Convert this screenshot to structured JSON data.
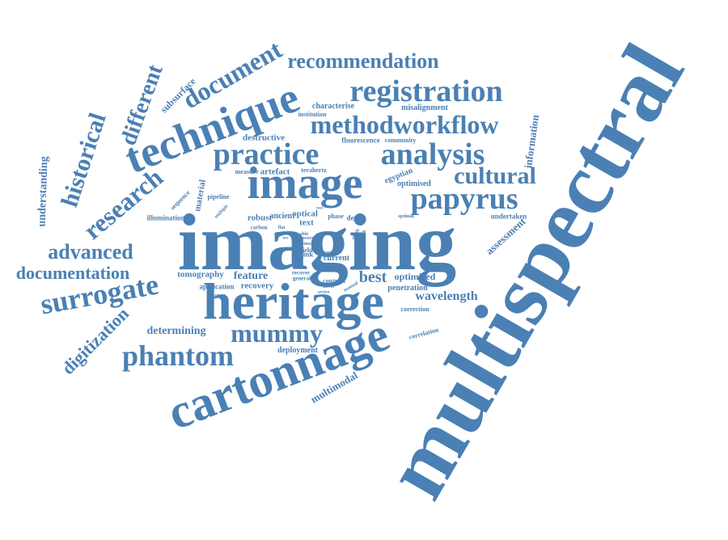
{
  "colors": {
    "text": "#4a80b4",
    "background": "#ffffff"
  },
  "words": [
    "multispectral",
    "imaging",
    "heritage",
    "cartonnage",
    "image",
    "technique",
    "registration",
    "practice",
    "analysis",
    "papyrus",
    "methodworkflow",
    "mummy",
    "phantom",
    "surrogate",
    "cultural",
    "recommendation",
    "document",
    "research",
    "historical",
    "different",
    "advanced",
    "documentation",
    "digitization",
    "best",
    "wavelength",
    "determining",
    "understanding",
    "subsurface",
    "information",
    "assessment",
    "multimodal",
    "tomography",
    "feature",
    "recovery",
    "application",
    "deployment",
    "optimized",
    "penetration",
    "destructive",
    "artefact",
    "characterise",
    "institution",
    "misalignment",
    "fluorescence",
    "community",
    "optimised",
    "egyptian",
    "terahertz",
    "measure",
    "material",
    "sequence",
    "pipeline",
    "illumination",
    "robust",
    "ancient",
    "optical",
    "text",
    "ink",
    "field",
    "current",
    "contrast",
    "detect",
    "phase",
    "discussion",
    "undertaken",
    "correction",
    "correlation",
    "carbon",
    "recover",
    "general",
    "change",
    "manual",
    "optimal",
    "multiple",
    "sector",
    "result",
    "time",
    "process",
    "able",
    "flat",
    "novel",
    "more",
    "section",
    "affect",
    "use",
    "cost"
  ]
}
